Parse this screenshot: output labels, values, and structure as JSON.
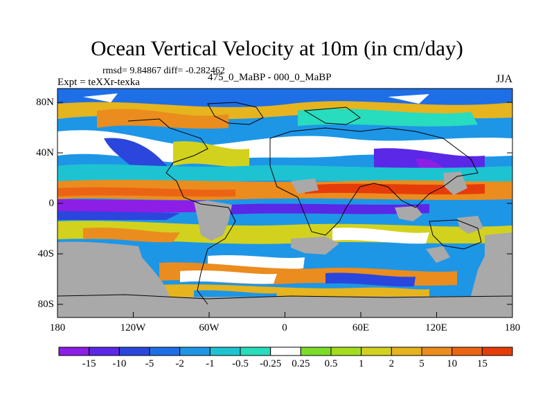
{
  "figure": {
    "title": "Ocean Vertical Velocity at 10m (in cm/day)",
    "stats": "rmsd= 9.84867 diff= -0.282462",
    "experiment": "Expt = teXXr-texka",
    "comparison": "475_0_MaBP - 000_0_MaBP",
    "season": "JJA"
  },
  "map": {
    "lat_ticks": [
      "80N",
      "40N",
      "0",
      "40S",
      "80S"
    ],
    "lon_ticks": [
      "180",
      "120W",
      "60W",
      "0",
      "60E",
      "120E",
      "180"
    ],
    "land_color": "#a9a9a9"
  },
  "colorbar": {
    "labels": [
      "-15",
      "-10",
      "-5",
      "-2",
      "-1",
      "-0.5",
      "-0.25",
      "0.25",
      "0.5",
      "1",
      "2",
      "5",
      "10",
      "15"
    ],
    "colors": [
      "#8c1ee6",
      "#5a28e6",
      "#2a46dc",
      "#1e6ee6",
      "#1e96e6",
      "#1ec3d2",
      "#28dcbe",
      "#ffffff",
      "#7ddc28",
      "#a5dc1e",
      "#d2d21e",
      "#e6b41e",
      "#eb8c1e",
      "#eb6414",
      "#e63c0a"
    ]
  }
}
